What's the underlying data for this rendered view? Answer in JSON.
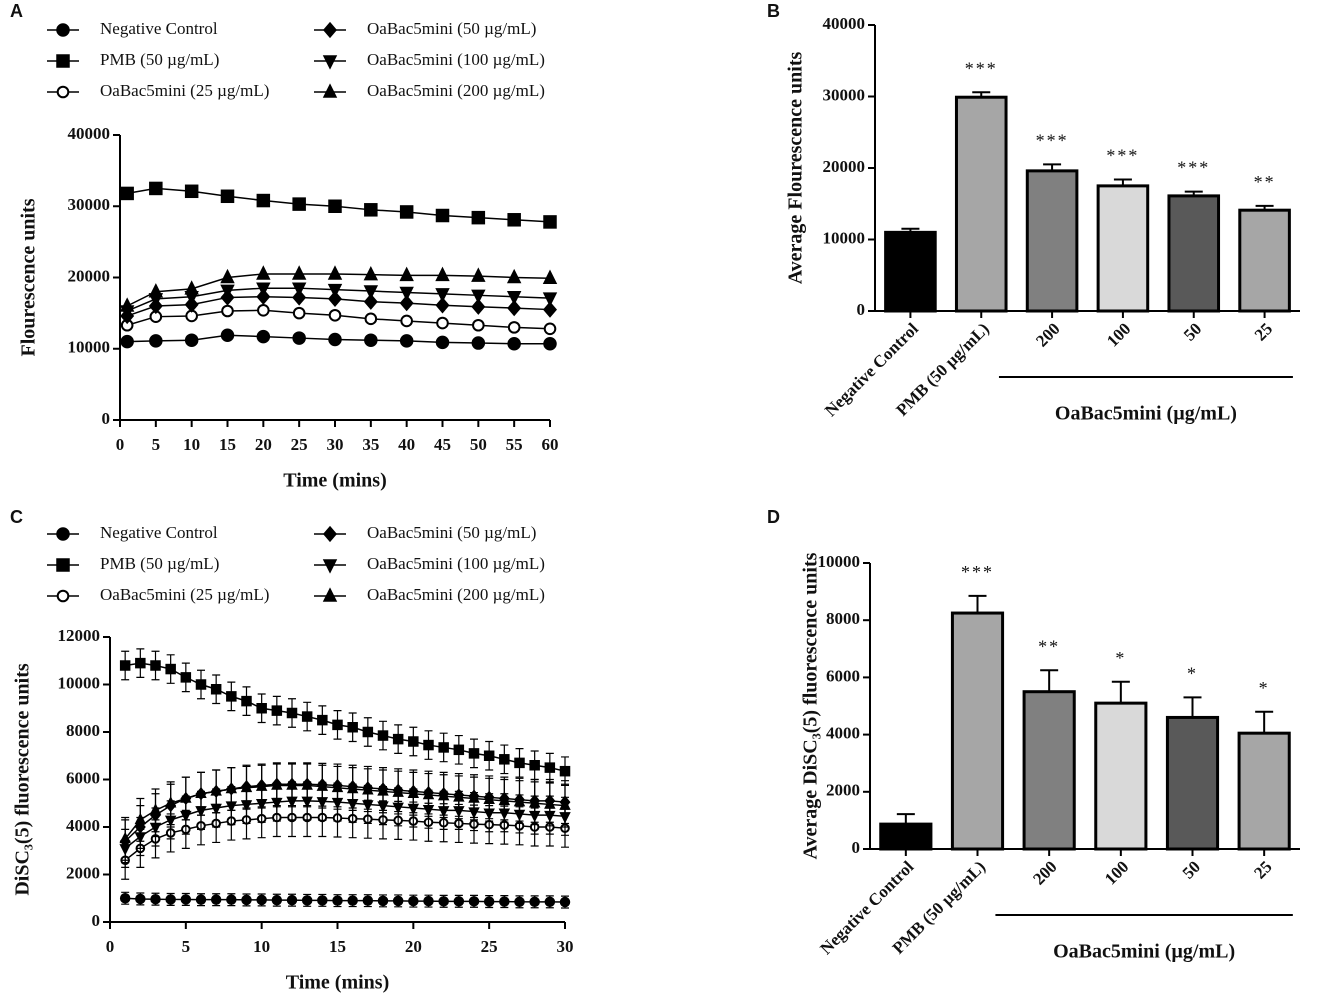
{
  "chart_data": [
    {
      "panel": "A",
      "type": "line",
      "xlabel": "Time (mins)",
      "ylabel": "Flourescence units",
      "x": [
        1,
        5,
        10,
        15,
        20,
        25,
        30,
        35,
        40,
        45,
        50,
        55,
        60
      ],
      "xlim": [
        0,
        60
      ],
      "xticks": [
        0,
        5,
        10,
        15,
        20,
        25,
        30,
        35,
        40,
        45,
        50,
        55,
        60
      ],
      "ylim": [
        0,
        40000
      ],
      "yticks": [
        0,
        10000,
        20000,
        30000,
        40000
      ],
      "series": [
        {
          "name": "Negative Control",
          "color": "#000000",
          "marker": "circle",
          "values": [
            11000,
            11100,
            11200,
            11900,
            11700,
            11500,
            11300,
            11200,
            11100,
            10900,
            10800,
            10700,
            10700
          ]
        },
        {
          "name": "PMB (50 µg/mL)",
          "color": "#000000",
          "marker": "square",
          "values": [
            31800,
            32500,
            32100,
            31400,
            30800,
            30300,
            30000,
            29500,
            29200,
            28700,
            28400,
            28100,
            27800
          ]
        },
        {
          "name": "OaBac5mini (25 µg/mL)",
          "color": "#000000",
          "marker": "open-circle",
          "values": [
            13300,
            14500,
            14600,
            15300,
            15400,
            15000,
            14700,
            14200,
            13900,
            13600,
            13300,
            13000,
            12800
          ]
        },
        {
          "name": "OaBac5mini (50 µg/mL)",
          "color": "#000000",
          "marker": "diamond",
          "values": [
            14600,
            16000,
            16200,
            17200,
            17300,
            17200,
            17000,
            16600,
            16400,
            16100,
            15900,
            15700,
            15500
          ]
        },
        {
          "name": "OaBac5mini (100 µg/mL)",
          "color": "#000000",
          "marker": "triangle-down",
          "values": [
            15300,
            17000,
            17300,
            18200,
            18500,
            18500,
            18300,
            18100,
            17900,
            17700,
            17500,
            17300,
            17100
          ]
        },
        {
          "name": "OaBac5mini (200 µg/mL)",
          "color": "#000000",
          "marker": "triangle-up",
          "values": [
            16000,
            18000,
            18400,
            20000,
            20500,
            20500,
            20500,
            20400,
            20300,
            20300,
            20200,
            20000,
            19900
          ]
        }
      ]
    },
    {
      "panel": "B",
      "type": "bar",
      "ylabel": "Average Flourescence units",
      "group_label": "OaBac5mini (µg/mL)",
      "categories": [
        "Negative Control",
        "PMB (50 µg/mL)",
        "200",
        "100",
        "50",
        "25"
      ],
      "values": [
        11000,
        29900,
        19600,
        17500,
        16100,
        14100
      ],
      "errors": [
        500,
        700,
        900,
        900,
        600,
        600
      ],
      "annotations": [
        null,
        "***",
        "***",
        "***",
        "***",
        "**"
      ],
      "colors": [
        "#000000",
        "#a6a6a6",
        "#808080",
        "#d9d9d9",
        "#595959",
        "#a6a6a6"
      ],
      "ylim": [
        0,
        40000
      ],
      "yticks": [
        0,
        10000,
        20000,
        30000,
        40000
      ]
    },
    {
      "panel": "C",
      "type": "line",
      "xlabel": "Time (mins)",
      "ylabel": "DiSC₃(5) fluorescence units",
      "x": [
        1,
        2,
        3,
        4,
        5,
        6,
        7,
        8,
        9,
        10,
        11,
        12,
        13,
        14,
        15,
        16,
        17,
        18,
        19,
        20,
        21,
        22,
        23,
        24,
        25,
        26,
        27,
        28,
        29,
        30
      ],
      "xlim": [
        0,
        30
      ],
      "xticks": [
        0,
        5,
        10,
        15,
        20,
        25,
        30
      ],
      "ylim": [
        0,
        12000
      ],
      "yticks": [
        0,
        2000,
        4000,
        6000,
        8000,
        10000,
        12000
      ],
      "series": [
        {
          "name": "Negative Control",
          "color": "#000000",
          "marker": "circle",
          "error": 250,
          "values": [
            1000,
            970,
            960,
            950,
            950,
            940,
            940,
            940,
            930,
            930,
            920,
            920,
            910,
            910,
            900,
            900,
            900,
            890,
            890,
            880,
            880,
            870,
            870,
            870,
            860,
            860,
            850,
            850,
            850,
            840
          ]
        },
        {
          "name": "PMB (50 µg/mL)",
          "color": "#000000",
          "marker": "square",
          "error": 600,
          "values": [
            10800,
            10900,
            10800,
            10650,
            10300,
            10000,
            9800,
            9500,
            9300,
            9000,
            8900,
            8800,
            8650,
            8500,
            8300,
            8200,
            8000,
            7850,
            7700,
            7600,
            7450,
            7350,
            7250,
            7100,
            7000,
            6850,
            6700,
            6600,
            6500,
            6350
          ]
        },
        {
          "name": "OaBac5mini (25 µg/mL)",
          "color": "#000000",
          "marker": "open-circle",
          "error": 800,
          "values": [
            2600,
            3100,
            3500,
            3750,
            3900,
            4050,
            4150,
            4250,
            4300,
            4350,
            4400,
            4400,
            4400,
            4400,
            4380,
            4350,
            4330,
            4300,
            4280,
            4250,
            4200,
            4180,
            4150,
            4120,
            4100,
            4080,
            4050,
            4000,
            4000,
            3950
          ]
        },
        {
          "name": "OaBac5mini (50 µg/mL)",
          "color": "#000000",
          "marker": "diamond",
          "error": 900,
          "values": [
            3400,
            4000,
            4500,
            4900,
            5200,
            5400,
            5500,
            5600,
            5700,
            5750,
            5800,
            5800,
            5800,
            5780,
            5750,
            5700,
            5650,
            5600,
            5550,
            5500,
            5450,
            5400,
            5350,
            5300,
            5250,
            5200,
            5150,
            5100,
            5100,
            5050
          ]
        },
        {
          "name": "OaBac5mini (100 µg/mL)",
          "color": "#000000",
          "marker": "triangle-down",
          "error": 800,
          "values": [
            3100,
            3600,
            4000,
            4300,
            4500,
            4700,
            4800,
            4900,
            4950,
            5000,
            5050,
            5100,
            5100,
            5080,
            5050,
            5000,
            4950,
            4900,
            4850,
            4800,
            4750,
            4700,
            4700,
            4650,
            4600,
            4600,
            4550,
            4500,
            4500,
            4450
          ]
        },
        {
          "name": "OaBac5mini (200 µg/mL)",
          "color": "#000000",
          "marker": "triangle-up",
          "error": 900,
          "values": [
            3500,
            4300,
            4700,
            5000,
            5200,
            5400,
            5500,
            5600,
            5650,
            5700,
            5750,
            5750,
            5750,
            5700,
            5650,
            5600,
            5550,
            5500,
            5450,
            5400,
            5350,
            5300,
            5250,
            5200,
            5150,
            5100,
            5050,
            5000,
            4950,
            4900
          ]
        }
      ]
    },
    {
      "panel": "D",
      "type": "bar",
      "ylabel": "Average DiSC₃(5) fluorescence units",
      "group_label": "OaBac5mini  (µg/mL)",
      "categories": [
        "Negative Control",
        "PMB (50 µg/mL)",
        "200",
        "100",
        "50",
        "25"
      ],
      "values": [
        870,
        8250,
        5500,
        5100,
        4600,
        4050
      ],
      "errors": [
        350,
        600,
        750,
        750,
        700,
        750
      ],
      "annotations": [
        null,
        "***",
        "**",
        "*",
        "*",
        "*"
      ],
      "colors": [
        "#000000",
        "#a6a6a6",
        "#808080",
        "#d9d9d9",
        "#595959",
        "#a6a6a6"
      ],
      "ylim": [
        0,
        10000
      ],
      "yticks": [
        0,
        2000,
        4000,
        6000,
        8000,
        10000
      ]
    }
  ]
}
